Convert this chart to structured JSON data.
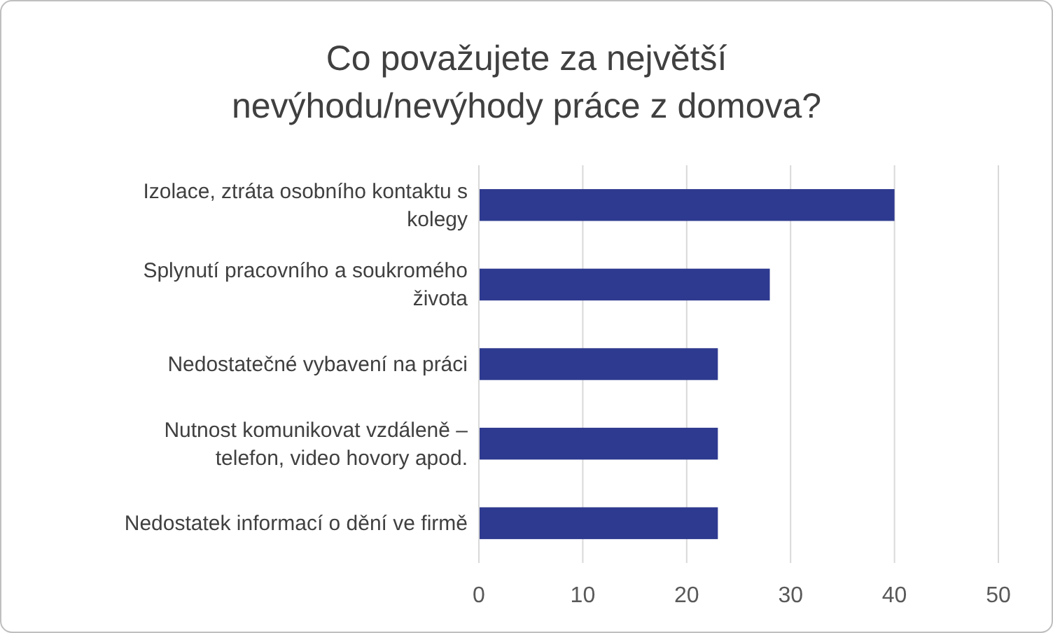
{
  "chart_data": {
    "type": "bar",
    "orientation": "horizontal",
    "title": "Co považujete za největší nevýhodu/nevýhody práce z domova?",
    "categories": [
      "Izolace, ztráta osobního kontaktu s kolegy",
      "Splynutí pracovního a soukromého života",
      "Nedostatečné vybavení na práci",
      "Nutnost komunikovat vzdáleně – telefon, video hovory apod.",
      "Nedostatek informací o dění ve firmě"
    ],
    "values": [
      40,
      28,
      23,
      23,
      23
    ],
    "color": "#2e3a8f",
    "xlim": [
      0,
      50
    ],
    "xticks": [
      0,
      10,
      20,
      30,
      40,
      50
    ],
    "grid": "x"
  }
}
